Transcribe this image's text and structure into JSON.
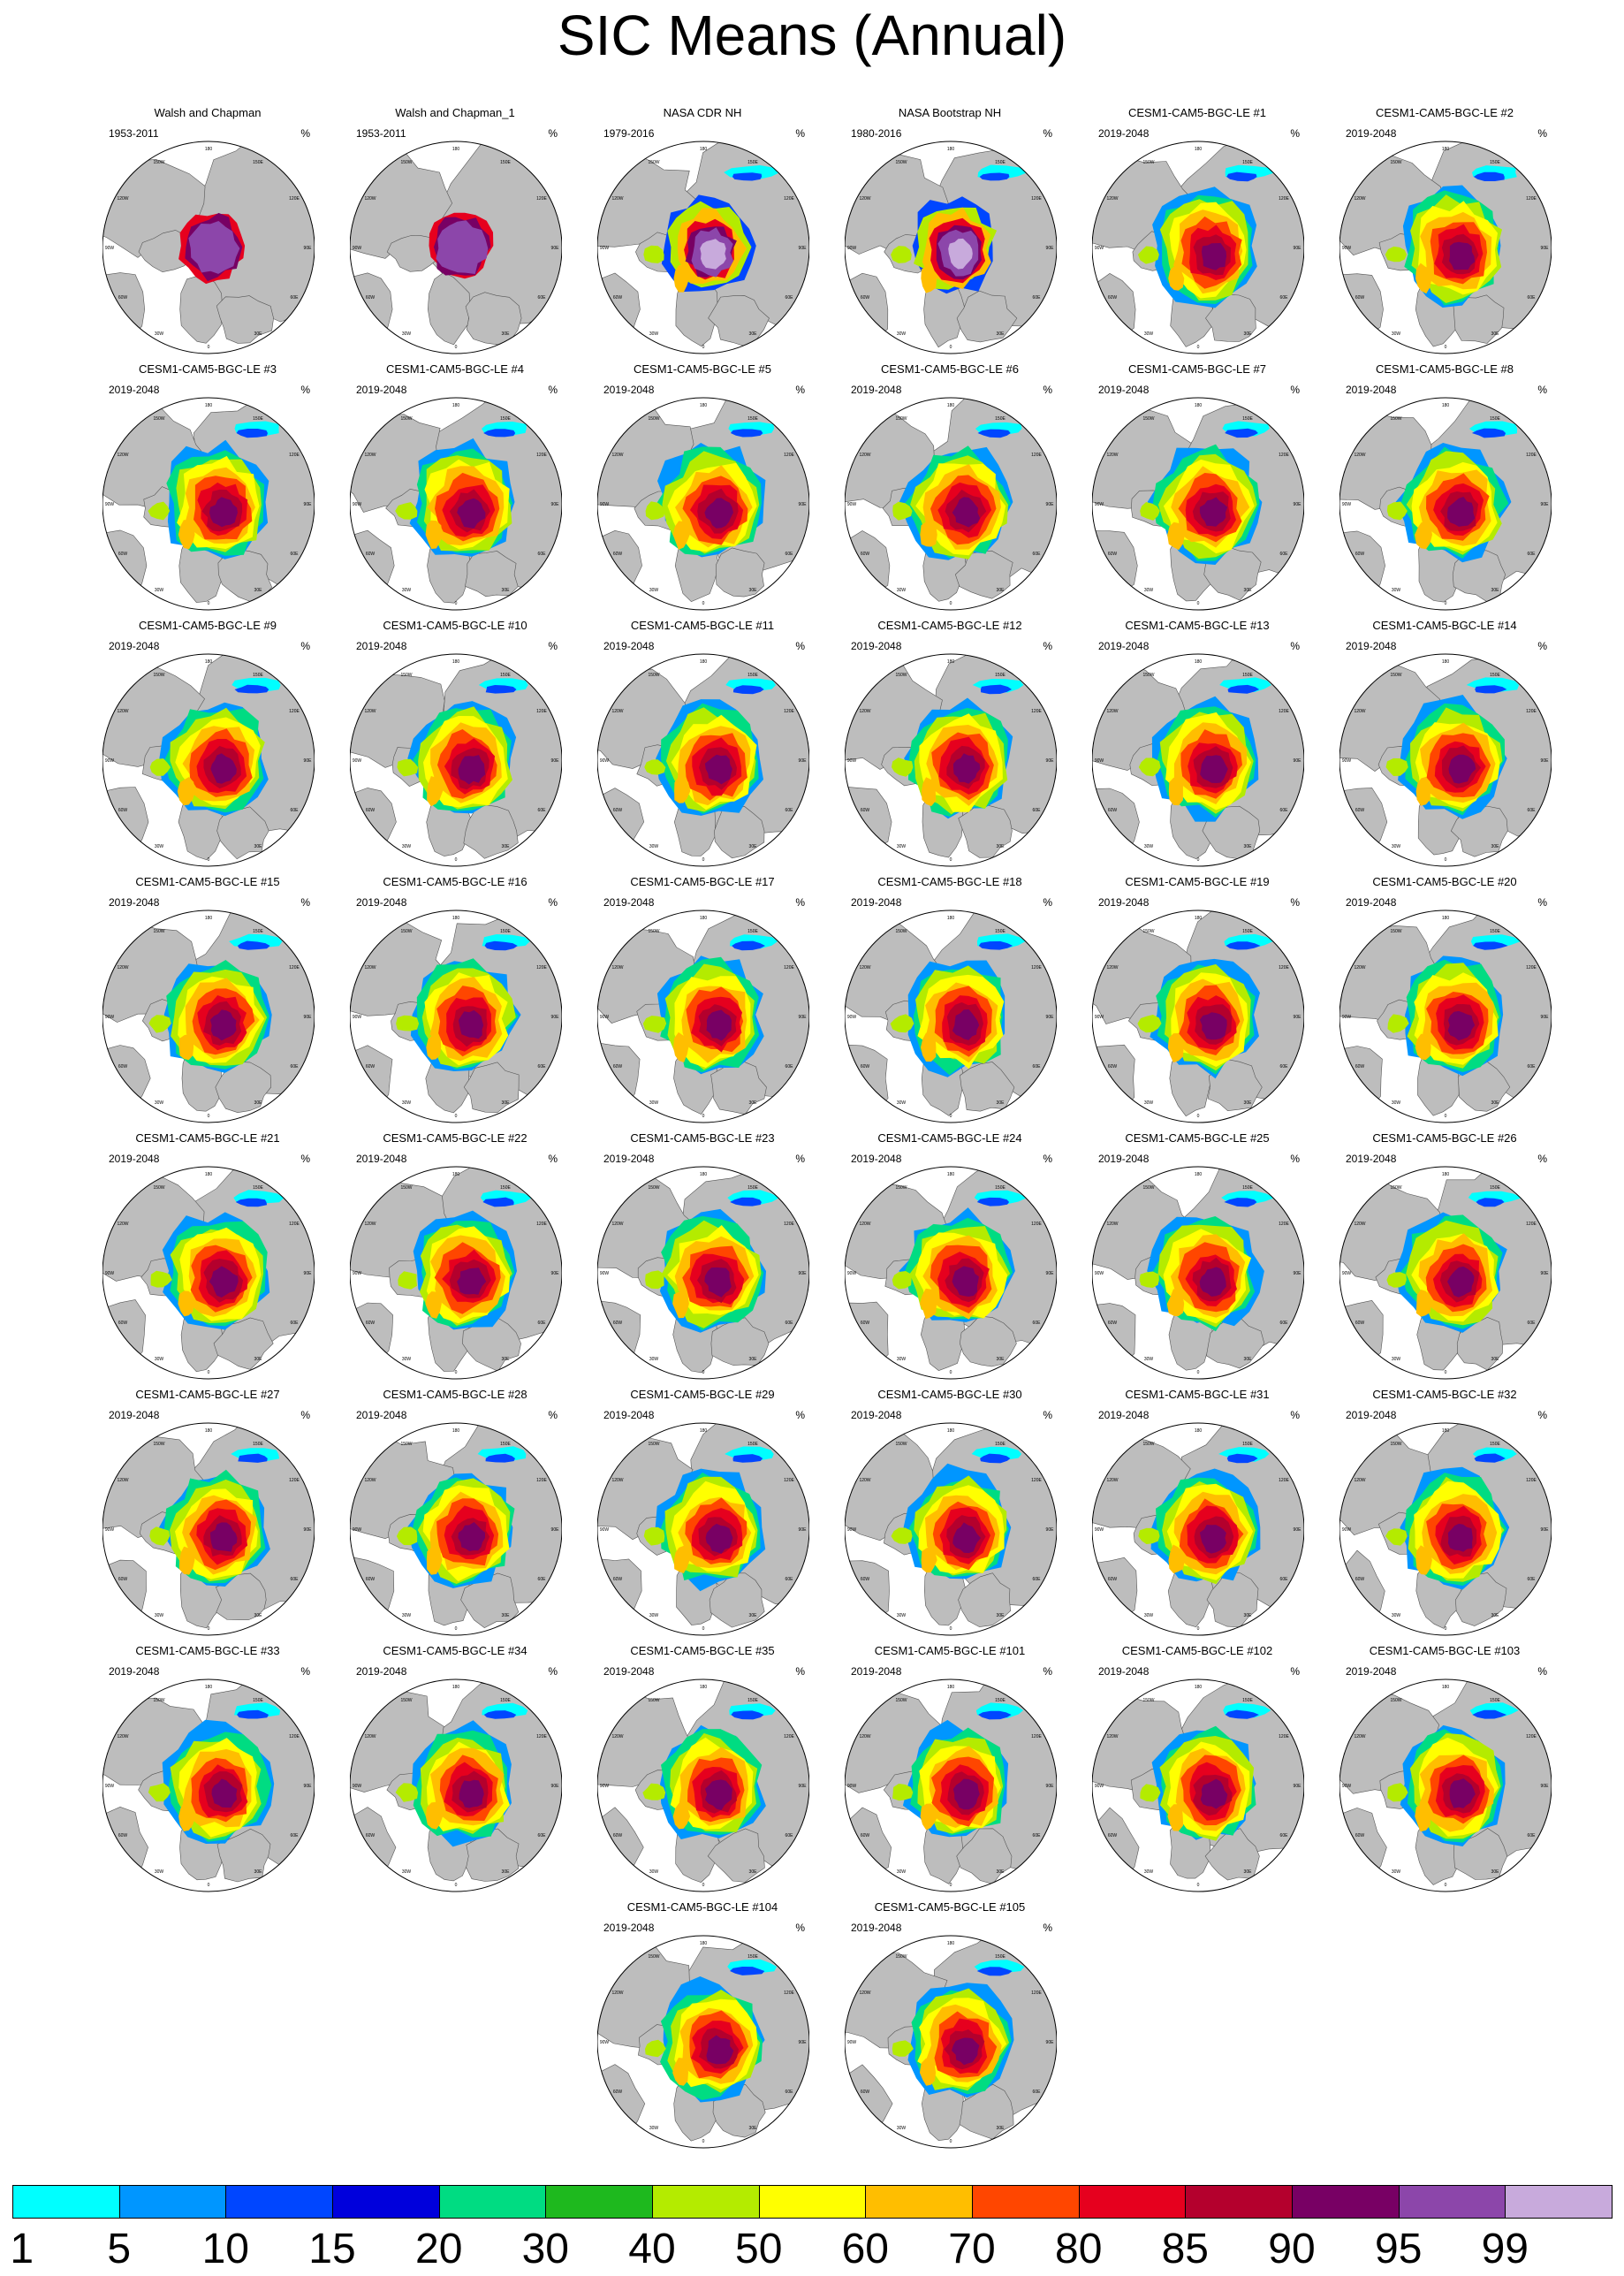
{
  "figure": {
    "title": "SIC Means (Annual)",
    "unit": "%"
  },
  "polar_grid_labels": [
    "180",
    "150W",
    "150E",
    "120W",
    "120E",
    "90W",
    "90E",
    "60W",
    "60E",
    "30W",
    "30E",
    "0"
  ],
  "panels": [
    {
      "title": "Walsh and Chapman",
      "period": "1953-2011",
      "style": "obs"
    },
    {
      "title": "Walsh and Chapman_1",
      "period": "1953-2011",
      "style": "obs"
    },
    {
      "title": "NASA CDR NH",
      "period": "1979-2016",
      "style": "sat"
    },
    {
      "title": "NASA Bootstrap NH",
      "period": "1980-2016",
      "style": "sat"
    },
    {
      "title": "CESM1-CAM5-BGC-LE #1",
      "period": "2019-2048",
      "style": "model"
    },
    {
      "title": "CESM1-CAM5-BGC-LE #2",
      "period": "2019-2048",
      "style": "model"
    },
    {
      "title": "CESM1-CAM5-BGC-LE #3",
      "period": "2019-2048",
      "style": "model"
    },
    {
      "title": "CESM1-CAM5-BGC-LE #4",
      "period": "2019-2048",
      "style": "model"
    },
    {
      "title": "CESM1-CAM5-BGC-LE #5",
      "period": "2019-2048",
      "style": "model"
    },
    {
      "title": "CESM1-CAM5-BGC-LE #6",
      "period": "2019-2048",
      "style": "model"
    },
    {
      "title": "CESM1-CAM5-BGC-LE #7",
      "period": "2019-2048",
      "style": "model"
    },
    {
      "title": "CESM1-CAM5-BGC-LE #8",
      "period": "2019-2048",
      "style": "model"
    },
    {
      "title": "CESM1-CAM5-BGC-LE #9",
      "period": "2019-2048",
      "style": "model"
    },
    {
      "title": "CESM1-CAM5-BGC-LE #10",
      "period": "2019-2048",
      "style": "model"
    },
    {
      "title": "CESM1-CAM5-BGC-LE #11",
      "period": "2019-2048",
      "style": "model"
    },
    {
      "title": "CESM1-CAM5-BGC-LE #12",
      "period": "2019-2048",
      "style": "model"
    },
    {
      "title": "CESM1-CAM5-BGC-LE #13",
      "period": "2019-2048",
      "style": "model"
    },
    {
      "title": "CESM1-CAM5-BGC-LE #14",
      "period": "2019-2048",
      "style": "model"
    },
    {
      "title": "CESM1-CAM5-BGC-LE #15",
      "period": "2019-2048",
      "style": "model"
    },
    {
      "title": "CESM1-CAM5-BGC-LE #16",
      "period": "2019-2048",
      "style": "model"
    },
    {
      "title": "CESM1-CAM5-BGC-LE #17",
      "period": "2019-2048",
      "style": "model"
    },
    {
      "title": "CESM1-CAM5-BGC-LE #18",
      "period": "2019-2048",
      "style": "model"
    },
    {
      "title": "CESM1-CAM5-BGC-LE #19",
      "period": "2019-2048",
      "style": "model"
    },
    {
      "title": "CESM1-CAM5-BGC-LE #20",
      "period": "2019-2048",
      "style": "model"
    },
    {
      "title": "CESM1-CAM5-BGC-LE #21",
      "period": "2019-2048",
      "style": "model"
    },
    {
      "title": "CESM1-CAM5-BGC-LE #22",
      "period": "2019-2048",
      "style": "model"
    },
    {
      "title": "CESM1-CAM5-BGC-LE #23",
      "period": "2019-2048",
      "style": "model"
    },
    {
      "title": "CESM1-CAM5-BGC-LE #24",
      "period": "2019-2048",
      "style": "model"
    },
    {
      "title": "CESM1-CAM5-BGC-LE #25",
      "period": "2019-2048",
      "style": "model"
    },
    {
      "title": "CESM1-CAM5-BGC-LE #26",
      "period": "2019-2048",
      "style": "model"
    },
    {
      "title": "CESM1-CAM5-BGC-LE #27",
      "period": "2019-2048",
      "style": "model"
    },
    {
      "title": "CESM1-CAM5-BGC-LE #28",
      "period": "2019-2048",
      "style": "model"
    },
    {
      "title": "CESM1-CAM5-BGC-LE #29",
      "period": "2019-2048",
      "style": "model"
    },
    {
      "title": "CESM1-CAM5-BGC-LE #30",
      "period": "2019-2048",
      "style": "model"
    },
    {
      "title": "CESM1-CAM5-BGC-LE #31",
      "period": "2019-2048",
      "style": "model"
    },
    {
      "title": "CESM1-CAM5-BGC-LE #32",
      "period": "2019-2048",
      "style": "model"
    },
    {
      "title": "CESM1-CAM5-BGC-LE #33",
      "period": "2019-2048",
      "style": "model"
    },
    {
      "title": "CESM1-CAM5-BGC-LE #34",
      "period": "2019-2048",
      "style": "model"
    },
    {
      "title": "CESM1-CAM5-BGC-LE #35",
      "period": "2019-2048",
      "style": "model"
    },
    {
      "title": "CESM1-CAM5-BGC-LE #101",
      "period": "2019-2048",
      "style": "model"
    },
    {
      "title": "CESM1-CAM5-BGC-LE #102",
      "period": "2019-2048",
      "style": "model"
    },
    {
      "title": "CESM1-CAM5-BGC-LE #103",
      "period": "2019-2048",
      "style": "model"
    },
    {
      "title": "CESM1-CAM5-BGC-LE #104",
      "period": "2019-2048",
      "style": "model"
    },
    {
      "title": "CESM1-CAM5-BGC-LE #105",
      "period": "2019-2048",
      "style": "model"
    }
  ],
  "colorbar": {
    "colors": [
      "#00ffff",
      "#0096ff",
      "#0046ff",
      "#0000dc",
      "#00dc82",
      "#1eb91e",
      "#b4eb00",
      "#ffff00",
      "#ffbe00",
      "#ff4600",
      "#e6001e",
      "#b4002d",
      "#780064",
      "#8c46aa",
      "#c8aadc"
    ],
    "labels": [
      "1",
      "5",
      "10",
      "15",
      "20",
      "30",
      "40",
      "50",
      "60",
      "70",
      "80",
      "85",
      "90",
      "95",
      "99"
    ]
  },
  "map_colors": {
    "land": "#bdbdbd",
    "ocean": "#ffffff",
    "outline": "#000000"
  }
}
